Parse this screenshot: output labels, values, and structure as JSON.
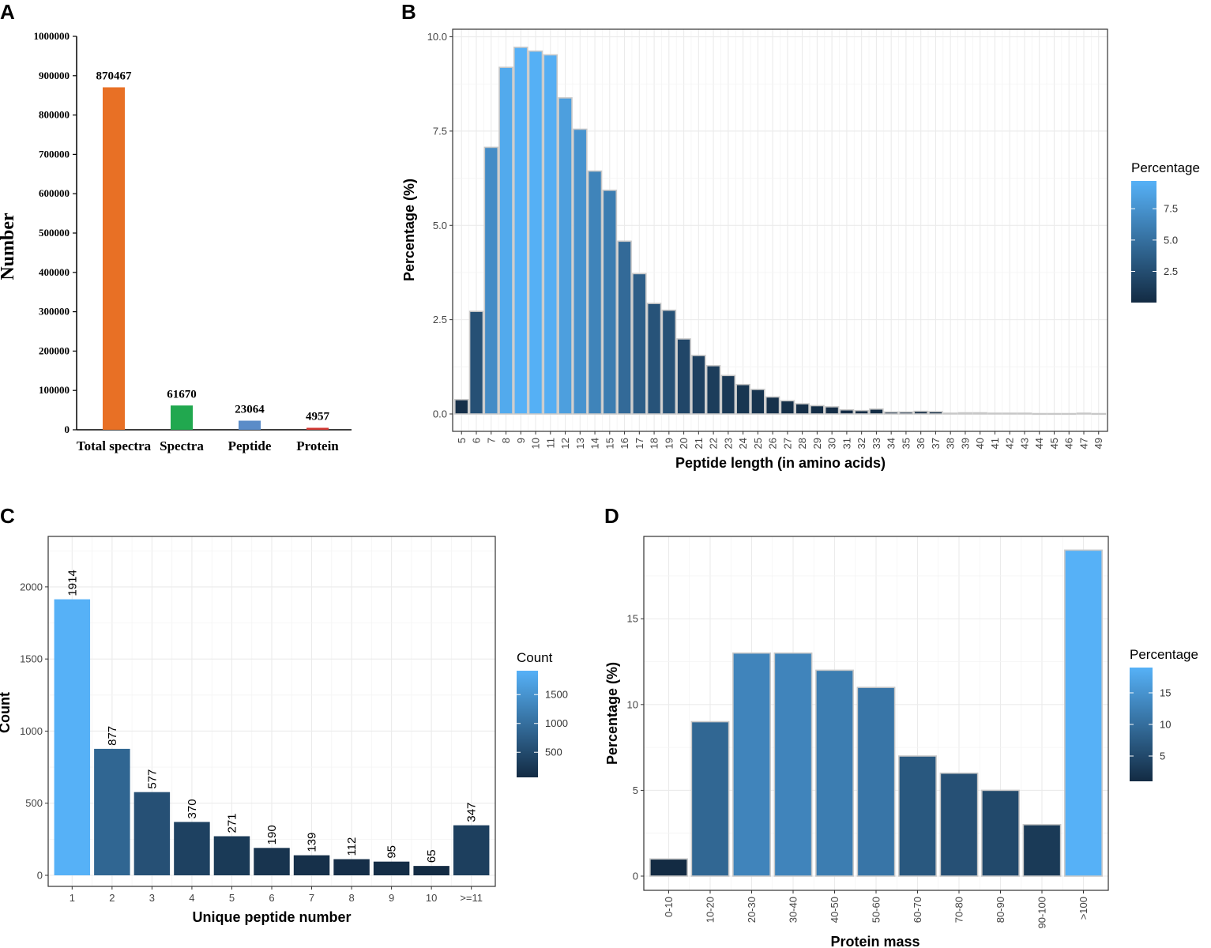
{
  "panel_labels": [
    "A",
    "B",
    "C",
    "D"
  ],
  "chart_data": [
    {
      "panel": "A",
      "type": "bar",
      "title": "",
      "xlabel": "",
      "ylabel": "Number",
      "ylim": [
        0,
        1000000
      ],
      "yticks": [
        "0",
        "100000",
        "200000",
        "300000",
        "400000",
        "500000",
        "600000",
        "700000",
        "800000",
        "900000",
        "1000000"
      ],
      "categories": [
        "Total spectra",
        "Spectra",
        "Peptide",
        "Protein"
      ],
      "values": [
        870467,
        61670,
        23064,
        4957
      ],
      "value_labels": [
        "870467",
        "61670",
        "23064",
        "4957"
      ],
      "colors": [
        "#E87025",
        "#21A84F",
        "#5B8CC8",
        "#D43A34"
      ],
      "grid": false
    },
    {
      "panel": "B",
      "type": "bar",
      "title": "",
      "xlabel": "Peptide length (in amino acids)",
      "ylabel": "Percentage (%)",
      "ylim": [
        0,
        10.2
      ],
      "yticks": [
        "0.0",
        "2.5",
        "5.0",
        "7.5",
        "10.0"
      ],
      "categories": [
        "5",
        "6",
        "7",
        "8",
        "9",
        "10",
        "11",
        "12",
        "13",
        "14",
        "15",
        "16",
        "17",
        "18",
        "19",
        "20",
        "21",
        "22",
        "23",
        "24",
        "25",
        "26",
        "27",
        "28",
        "29",
        "30",
        "31",
        "32",
        "33",
        "34",
        "35",
        "36",
        "37",
        "38",
        "39",
        "40",
        "41",
        "42",
        "43",
        "44",
        "45",
        "46",
        "47",
        "49"
      ],
      "values": [
        0.38,
        2.72,
        7.07,
        9.19,
        9.72,
        9.62,
        9.52,
        8.38,
        7.55,
        6.44,
        5.93,
        4.58,
        3.72,
        2.93,
        2.75,
        1.99,
        1.55,
        1.28,
        1.02,
        0.78,
        0.65,
        0.45,
        0.35,
        0.27,
        0.22,
        0.19,
        0.11,
        0.09,
        0.13,
        0.05,
        0.05,
        0.07,
        0.06,
        0.02,
        0.03,
        0.03,
        0.02,
        0.02,
        0.02,
        0.01,
        0.01,
        0.01,
        0.02,
        0.01
      ],
      "legend": {
        "title": "Percentage",
        "ticks": [
          "7.5",
          "5.0",
          "2.5"
        ],
        "tick_values": [
          7.5,
          5.0,
          2.5
        ],
        "range": [
          0.01,
          9.72
        ]
      },
      "grid": true
    },
    {
      "panel": "C",
      "type": "bar",
      "title": "",
      "xlabel": "Unique peptide number",
      "ylabel": "Count",
      "ylim": [
        0,
        2350
      ],
      "yticks": [
        "0",
        "500",
        "1000",
        "1500",
        "2000"
      ],
      "categories": [
        "1",
        "2",
        "3",
        "4",
        "5",
        "6",
        "7",
        "8",
        "9",
        "10",
        ">=11"
      ],
      "values": [
        1914,
        877,
        577,
        370,
        271,
        190,
        139,
        112,
        95,
        65,
        347
      ],
      "value_labels": [
        "1914",
        "877",
        "577",
        "370",
        "271",
        "190",
        "139",
        "112",
        "95",
        "65",
        "347"
      ],
      "legend": {
        "title": "Count",
        "ticks": [
          "1500",
          "1000",
          "500"
        ],
        "tick_values": [
          1500,
          1000,
          500
        ],
        "range": [
          65,
          1914
        ]
      },
      "grid": true
    },
    {
      "panel": "D",
      "type": "bar",
      "title": "",
      "xlabel": "Protein mass",
      "ylabel": "Percentage (%)",
      "ylim": [
        0,
        19.8
      ],
      "yticks": [
        "0",
        "5",
        "10",
        "15"
      ],
      "categories": [
        "0-10",
        "10-20",
        "20-30",
        "30-40",
        "40-50",
        "50-60",
        "60-70",
        "70-80",
        "80-90",
        "90-100",
        ">100"
      ],
      "values": [
        1,
        9,
        13,
        13,
        12,
        11,
        7,
        6,
        5,
        3,
        19
      ],
      "legend": {
        "title": "Percentage",
        "ticks": [
          "15",
          "10",
          "5"
        ],
        "tick_values": [
          15,
          10,
          5
        ],
        "range": [
          1,
          19
        ]
      },
      "grid": true
    }
  ]
}
